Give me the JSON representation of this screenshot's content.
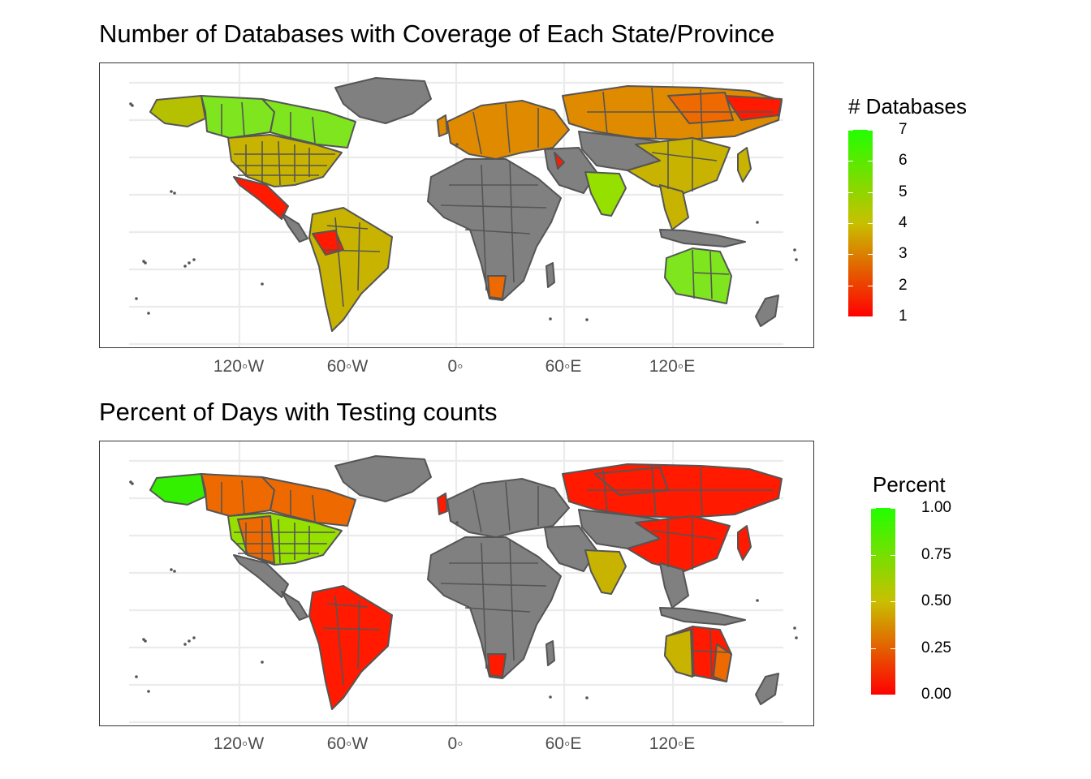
{
  "maps": [
    {
      "title": "Number of Databases with Coverage of Each State/Province",
      "x_ticks": [
        "120◦W",
        "60◦W",
        "0◦",
        "60◦E",
        "120◦E"
      ],
      "legend": {
        "title": "# Databases",
        "labels": [
          "7",
          "6",
          "5",
          "4",
          "3",
          "2",
          "1"
        ],
        "color_high": "#22ff00",
        "color_mid": "#c8c000",
        "color_low": "#ff0000"
      }
    },
    {
      "title": "Percent of Days with Testing counts",
      "x_ticks": [
        "120◦W",
        "60◦W",
        "0◦",
        "60◦E",
        "120◦E"
      ],
      "legend": {
        "title": "Percent",
        "labels": [
          "1.00",
          "0.75",
          "0.50",
          "0.25",
          "0.00"
        ],
        "color_high": "#22ff00",
        "color_mid": "#c8c000",
        "color_low": "#ff0000"
      }
    }
  ],
  "colors": {
    "no_data": "#808080",
    "border": "#555555",
    "grid": "#ebebeb",
    "panel_border": "#333333"
  }
}
